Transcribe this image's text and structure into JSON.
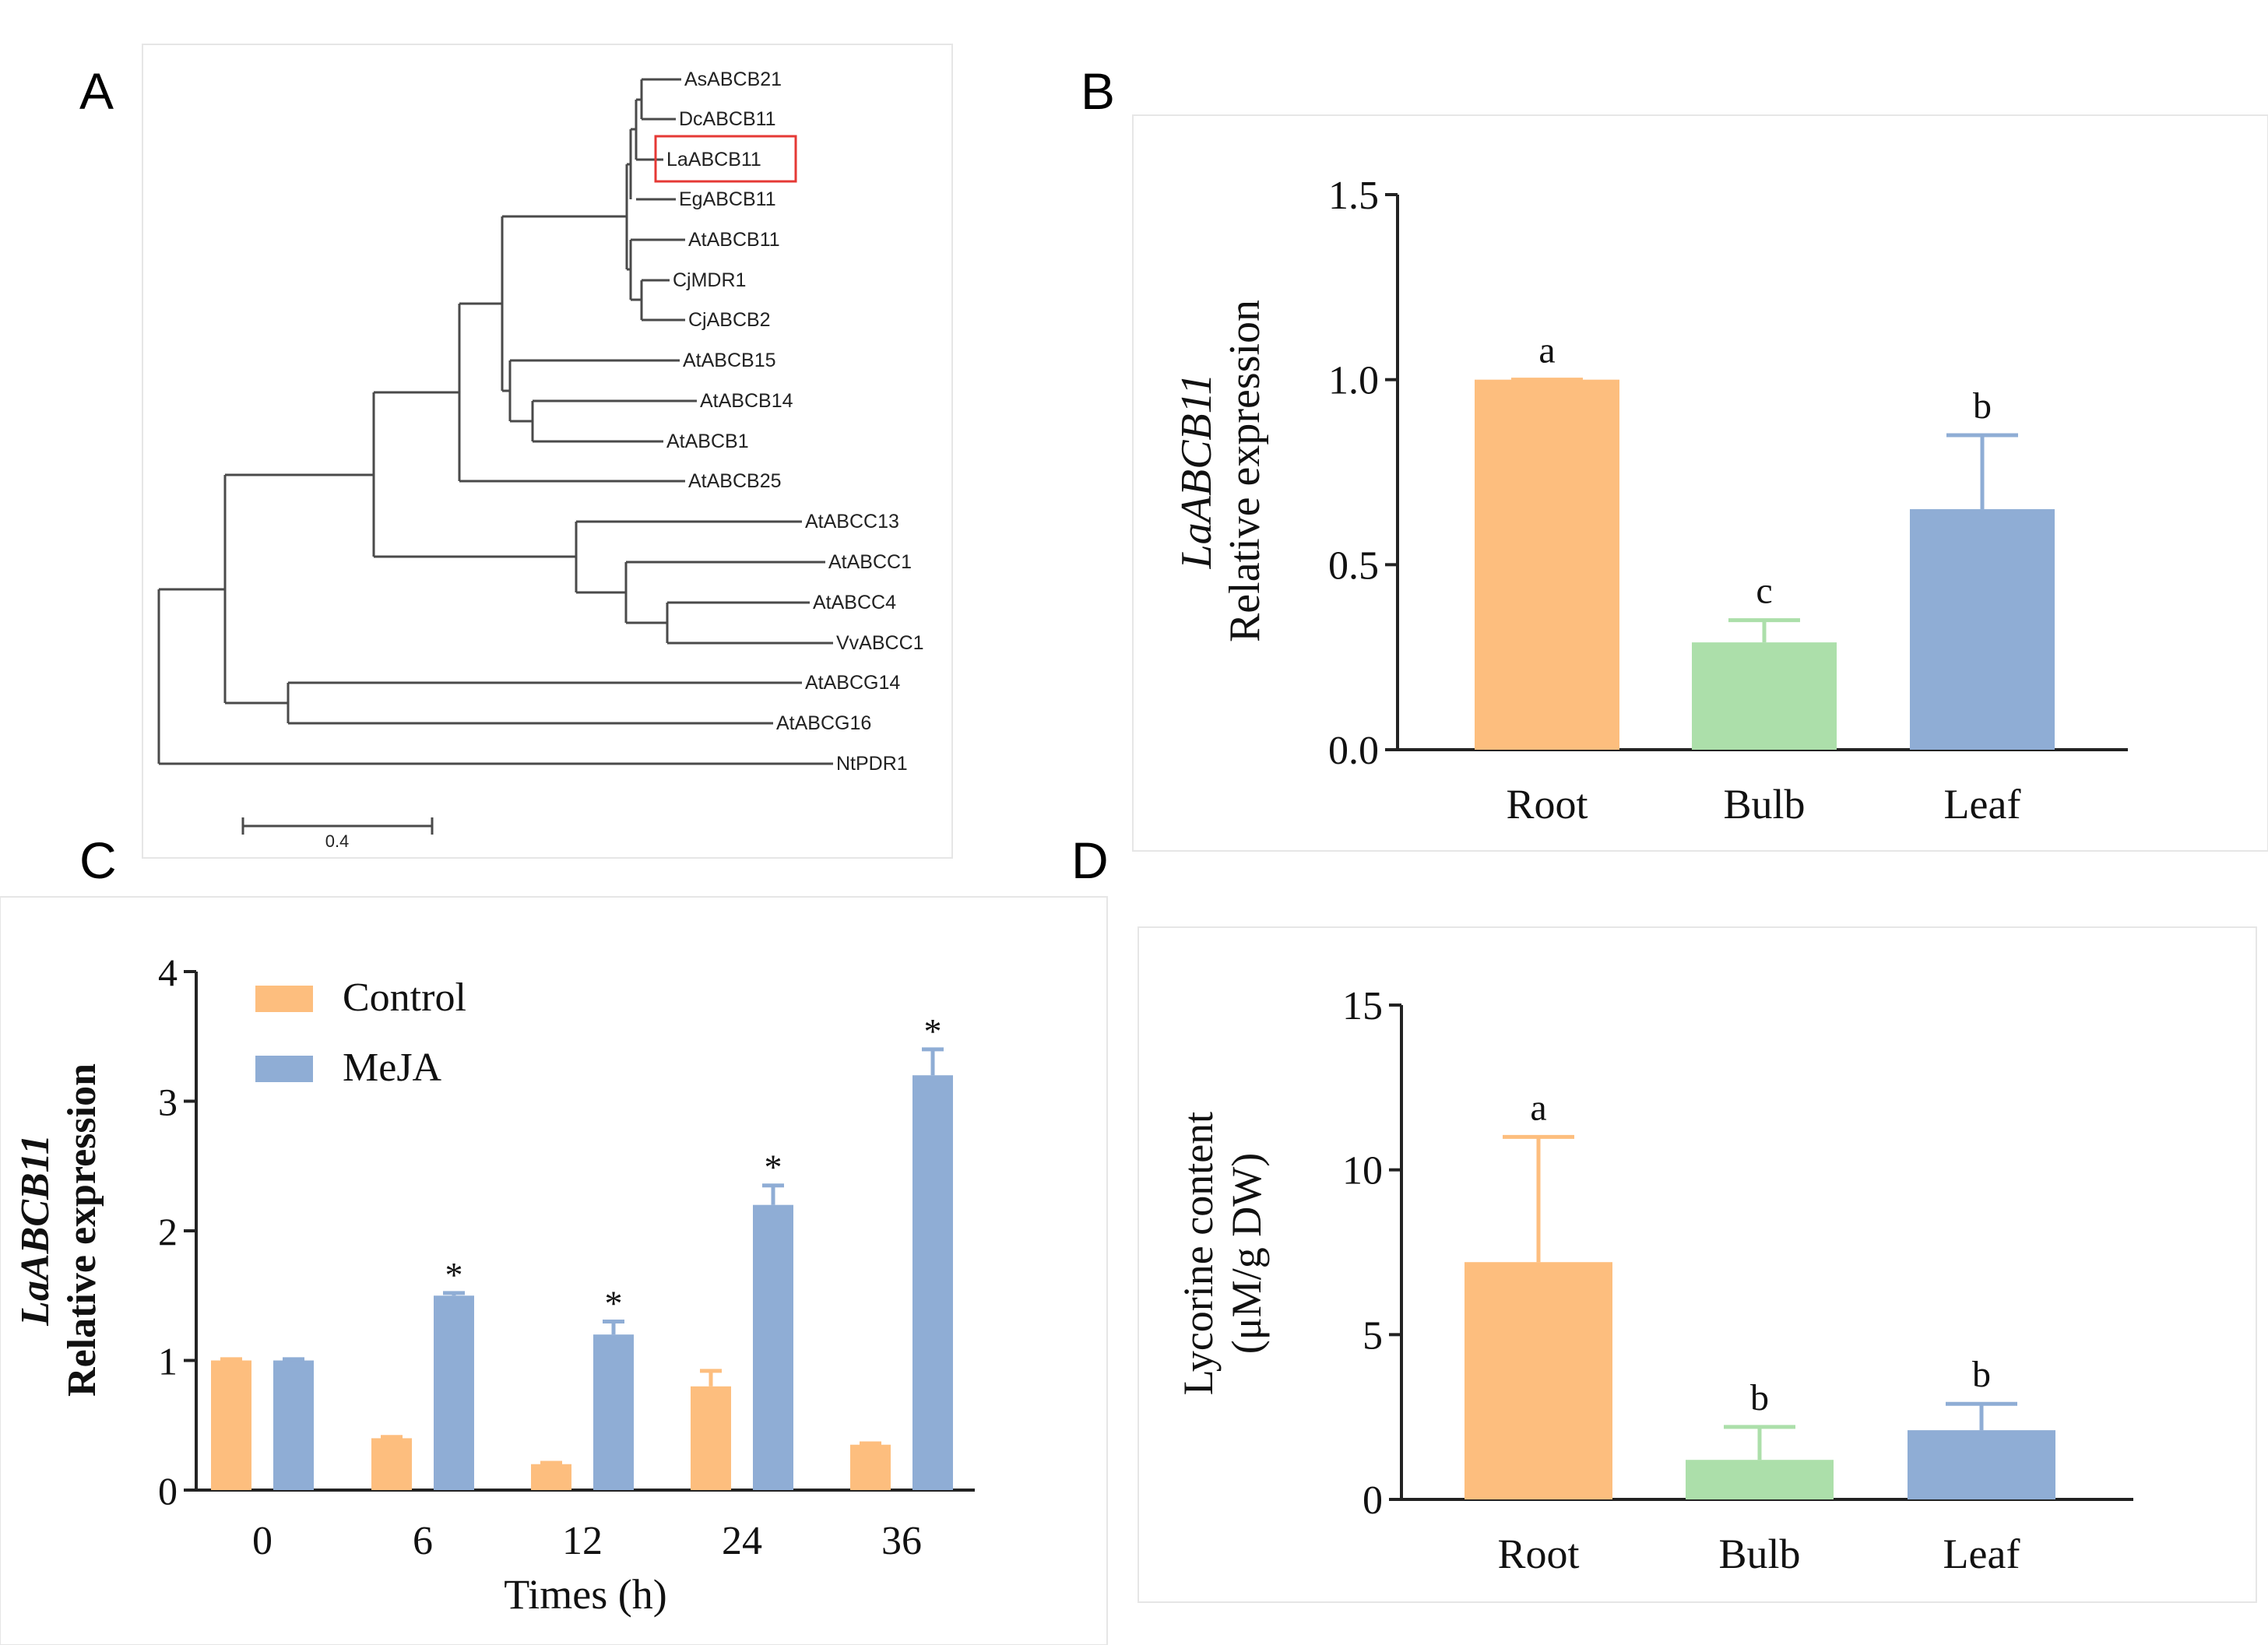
{
  "panel_labels": {
    "a": "A",
    "b": "B",
    "c": "C",
    "d": "D"
  },
  "colors": {
    "orange": "#fdbe7e",
    "green": "#acdfaa",
    "blue": "#8fadd5",
    "highlight": "#e53935",
    "ink": "#222222",
    "tree": "#4a4a4a"
  },
  "chart_data": [
    {
      "panel": "A",
      "type": "phylogenetic-tree",
      "leaves": [
        "AsABCB21",
        "DcABCB11",
        "LaABCB11",
        "EgABCB11",
        "AtABCB11",
        "CjMDR1",
        "CjABCB2",
        "AtABCB15",
        "AtABCB14",
        "AtABCB1",
        "AtABCB25",
        "AtABCC13",
        "AtABCC1",
        "AtABCC4",
        "VvABCC1",
        "AtABCG14",
        "AtABCG16",
        "NtPDR1"
      ],
      "highlighted_leaf": "LaABCB11",
      "scale_bar": {
        "label": "0.4",
        "value": 0.4
      }
    },
    {
      "panel": "B",
      "type": "bar",
      "title": "",
      "ylabel_italic": "LaABCB11",
      "ylabel": "Relative expression",
      "xlabel": "",
      "ylim": [
        0,
        1.5
      ],
      "yticks": [
        "0.0",
        "0.5",
        "1.0",
        "1.5"
      ],
      "yticks_values": [
        0,
        0.5,
        1.0,
        1.5
      ],
      "categories": [
        "Root",
        "Bulb",
        "Leaf"
      ],
      "values": [
        1.0,
        0.29,
        0.65
      ],
      "errors": [
        0.0,
        0.06,
        0.2
      ],
      "letters": [
        "a",
        "c",
        "b"
      ],
      "bar_colors": [
        "orange",
        "green",
        "blue"
      ]
    },
    {
      "panel": "C",
      "type": "bar",
      "title": "",
      "ylabel_italic": "LaABCB11",
      "ylabel": "Relative expression",
      "xlabel": "Times (h)",
      "ylim": [
        0,
        4
      ],
      "yticks": [
        "0",
        "1",
        "2",
        "3",
        "4"
      ],
      "yticks_values": [
        0,
        1,
        2,
        3,
        4
      ],
      "categories": [
        "0",
        "6",
        "12",
        "24",
        "36"
      ],
      "legend": "top-left",
      "series": [
        {
          "name": "Control",
          "color": "orange",
          "values": [
            1.0,
            0.4,
            0.2,
            0.8,
            0.35
          ],
          "errors": [
            0.01,
            0.01,
            0.01,
            0.12,
            0.01
          ],
          "marks": [
            "",
            "",
            "",
            "",
            ""
          ]
        },
        {
          "name": "MeJA",
          "color": "blue",
          "values": [
            1.0,
            1.5,
            1.2,
            2.2,
            3.2
          ],
          "errors": [
            0.01,
            0.02,
            0.1,
            0.15,
            0.2
          ],
          "marks": [
            "",
            "*",
            "*",
            "*",
            "*"
          ]
        }
      ]
    },
    {
      "panel": "D",
      "type": "bar",
      "title": "",
      "ylabel": "Lycorine content",
      "ylabel_units": "(μM/g DW)",
      "xlabel": "",
      "ylim": [
        0,
        15
      ],
      "yticks": [
        "0",
        "5",
        "10",
        "15"
      ],
      "yticks_values": [
        0,
        5,
        10,
        15
      ],
      "categories": [
        "Root",
        "Bulb",
        "Leaf"
      ],
      "values": [
        7.2,
        1.2,
        2.1
      ],
      "errors": [
        3.8,
        1.0,
        0.8
      ],
      "letters": [
        "a",
        "b",
        "b"
      ],
      "bar_colors": [
        "orange",
        "green",
        "blue"
      ]
    }
  ]
}
